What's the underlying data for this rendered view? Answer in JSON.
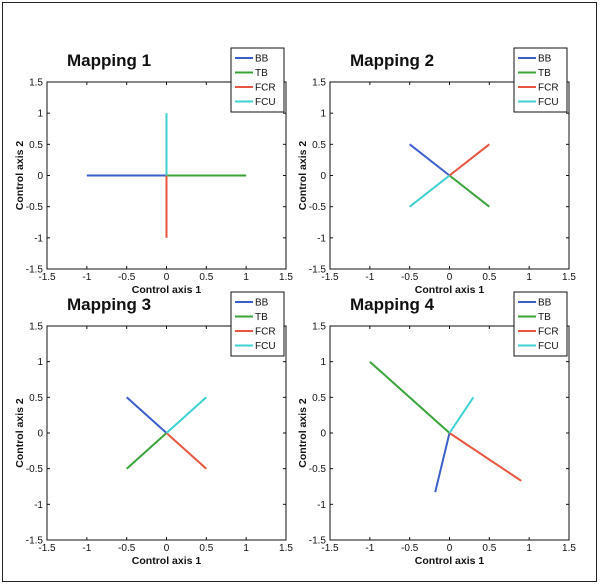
{
  "chart_data": [
    {
      "type": "line",
      "title": "Mapping 1",
      "xlabel": "Control axis 1",
      "ylabel": "Control axis 2",
      "xlim": [
        -1.5,
        1.5
      ],
      "ylim": [
        -1.5,
        1.5
      ],
      "xticks": [
        "-1.5",
        "-1",
        "-0.5",
        "0",
        "0.5",
        "1",
        "1.5"
      ],
      "yticks": [
        "-1.5",
        "-1",
        "-0.5",
        "0",
        "0.5",
        "1",
        "1.5"
      ],
      "legend_position": "top-right",
      "series": [
        {
          "name": "BB",
          "color": "#3a5fcd",
          "x": [
            0,
            -1
          ],
          "y": [
            0,
            0
          ]
        },
        {
          "name": "TB",
          "color": "#3aa33a",
          "x": [
            0,
            1
          ],
          "y": [
            0,
            0
          ]
        },
        {
          "name": "FCR",
          "color": "#e8553f",
          "x": [
            0,
            0
          ],
          "y": [
            0,
            -1
          ]
        },
        {
          "name": "FCU",
          "color": "#3dd1d1",
          "x": [
            0,
            0
          ],
          "y": [
            0,
            1
          ]
        }
      ]
    },
    {
      "type": "line",
      "title": "Mapping 2",
      "xlabel": "Control axis 1",
      "ylabel": "Control axis 2",
      "xlim": [
        -1.5,
        1.5
      ],
      "ylim": [
        -1.5,
        1.5
      ],
      "xticks": [
        "-1.5",
        "-1",
        "-0.5",
        "0",
        "0.5",
        "1",
        "1.5"
      ],
      "yticks": [
        "-1.5",
        "-1",
        "-0.5",
        "0",
        "0.5",
        "1",
        "1.5"
      ],
      "legend_position": "top-right",
      "series": [
        {
          "name": "BB",
          "color": "#3a5fcd",
          "x": [
            0,
            -0.5
          ],
          "y": [
            0,
            0.5
          ]
        },
        {
          "name": "TB",
          "color": "#3aa33a",
          "x": [
            0,
            0.5
          ],
          "y": [
            0,
            -0.5
          ]
        },
        {
          "name": "FCR",
          "color": "#e8553f",
          "x": [
            0,
            0.5
          ],
          "y": [
            0,
            0.5
          ]
        },
        {
          "name": "FCU",
          "color": "#3dd1d1",
          "x": [
            0,
            -0.5
          ],
          "y": [
            0,
            -0.5
          ]
        }
      ]
    },
    {
      "type": "line",
      "title": "Mapping 3",
      "xlabel": "Control axis 1",
      "ylabel": "Control axis 2",
      "xlim": [
        -1.5,
        1.5
      ],
      "ylim": [
        -1.5,
        1.5
      ],
      "xticks": [
        "-1.5",
        "-1",
        "-0.5",
        "0",
        "0.5",
        "1",
        "1.5"
      ],
      "yticks": [
        "-1.5",
        "-1",
        "-0.5",
        "0",
        "0.5",
        "1",
        "1.5"
      ],
      "legend_position": "top-right",
      "series": [
        {
          "name": "BB",
          "color": "#3a5fcd",
          "x": [
            0,
            -0.5
          ],
          "y": [
            0,
            0.5
          ]
        },
        {
          "name": "TB",
          "color": "#3aa33a",
          "x": [
            0,
            -0.5
          ],
          "y": [
            0,
            -0.5
          ]
        },
        {
          "name": "FCR",
          "color": "#e8553f",
          "x": [
            0,
            0.5
          ],
          "y": [
            0,
            -0.5
          ]
        },
        {
          "name": "FCU",
          "color": "#3dd1d1",
          "x": [
            0,
            0.5
          ],
          "y": [
            0,
            0.5
          ]
        }
      ]
    },
    {
      "type": "line",
      "title": "Mapping 4",
      "xlabel": "Control axis 1",
      "ylabel": "Control axis 2",
      "xlim": [
        -1.5,
        1.5
      ],
      "ylim": [
        -1.5,
        1.5
      ],
      "xticks": [
        "-1.5",
        "-1",
        "-0.5",
        "0",
        "0.5",
        "1",
        "1.5"
      ],
      "yticks": [
        "-1.5",
        "-1",
        "-0.5",
        "0",
        "0.5",
        "1",
        "1.5"
      ],
      "legend_position": "top-right",
      "series": [
        {
          "name": "BB",
          "color": "#3a5fcd",
          "x": [
            0,
            -0.18
          ],
          "y": [
            0,
            -0.83
          ]
        },
        {
          "name": "TB",
          "color": "#3aa33a",
          "x": [
            0,
            -1
          ],
          "y": [
            0,
            1
          ]
        },
        {
          "name": "FCR",
          "color": "#e8553f",
          "x": [
            0,
            0.9
          ],
          "y": [
            0,
            -0.67
          ]
        },
        {
          "name": "FCU",
          "color": "#3dd1d1",
          "x": [
            0,
            0.3
          ],
          "y": [
            0,
            0.5
          ]
        }
      ]
    }
  ]
}
